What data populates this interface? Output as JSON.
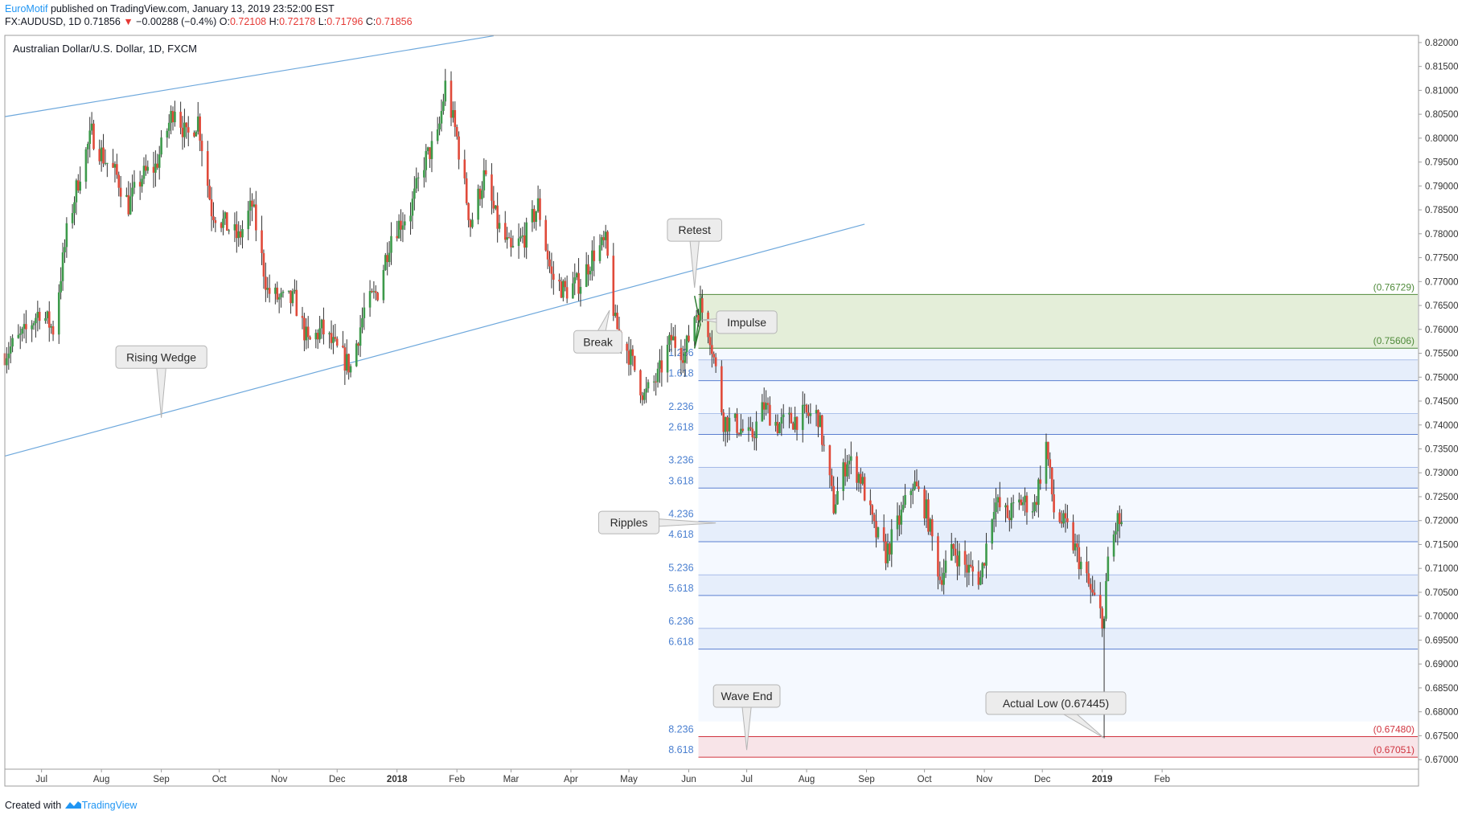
{
  "header": {
    "author": "EuroMotif",
    "published": " published on TradingView.com, January 13, 2019 23:52:00 EST",
    "symbol": "FX:AUDUSD, 1D",
    "last": "0.71856",
    "change_arrow": "▼",
    "change": "−0.00288 (−0.4%)",
    "o_label": "O:",
    "o_value": "0.72108",
    "h_label": "H:",
    "h_value": "0.72178",
    "l_label": "L:",
    "l_value": "0.71796",
    "c_label": "C:",
    "c_value": "0.71856"
  },
  "footer": {
    "created_with": "Created with",
    "brand": "TradingView"
  },
  "chart_data": {
    "type": "candlestick",
    "title": "Australian Dollar/U.S. Dollar, 1D, FXCM",
    "ylim": [
      0.668,
      0.8215
    ],
    "yticks": [
      "0.67000",
      "0.67500",
      "0.68000",
      "0.68500",
      "0.69000",
      "0.69500",
      "0.70000",
      "0.70500",
      "0.71000",
      "0.71500",
      "0.72000",
      "0.72500",
      "0.73000",
      "0.73500",
      "0.74000",
      "0.74500",
      "0.75000",
      "0.75500",
      "0.76000",
      "0.76500",
      "0.77000",
      "0.77500",
      "0.78000",
      "0.78500",
      "0.79000",
      "0.79500",
      "0.80000",
      "0.80500",
      "0.81000",
      "0.81500",
      "0.82000"
    ],
    "xticks": [
      {
        "label": "Jul",
        "date": "2017-07-01",
        "bold": false
      },
      {
        "label": "Aug",
        "date": "2017-08-01",
        "bold": false
      },
      {
        "label": "Sep",
        "date": "2017-09-01",
        "bold": false
      },
      {
        "label": "Oct",
        "date": "2017-10-01",
        "bold": false
      },
      {
        "label": "Nov",
        "date": "2017-11-01",
        "bold": false
      },
      {
        "label": "Dec",
        "date": "2017-12-01",
        "bold": false
      },
      {
        "label": "2018",
        "date": "2018-01-01",
        "bold": true
      },
      {
        "label": "Feb",
        "date": "2018-02-01",
        "bold": false
      },
      {
        "label": "Mar",
        "date": "2018-03-01",
        "bold": false
      },
      {
        "label": "Apr",
        "date": "2018-04-01",
        "bold": false
      },
      {
        "label": "May",
        "date": "2018-05-01",
        "bold": false
      },
      {
        "label": "Jun",
        "date": "2018-06-01",
        "bold": false
      },
      {
        "label": "Jul",
        "date": "2018-07-01",
        "bold": false
      },
      {
        "label": "Aug",
        "date": "2018-08-01",
        "bold": false
      },
      {
        "label": "Sep",
        "date": "2018-09-01",
        "bold": false
      },
      {
        "label": "Oct",
        "date": "2018-10-01",
        "bold": false
      },
      {
        "label": "Nov",
        "date": "2018-11-01",
        "bold": false
      },
      {
        "label": "Dec",
        "date": "2018-12-01",
        "bold": false
      },
      {
        "label": "2019",
        "date": "2019-01-01",
        "bold": true
      },
      {
        "label": "Feb",
        "date": "2019-02-01",
        "bold": false
      }
    ],
    "price_path": [
      [
        "2017-06-12",
        0.755
      ],
      [
        "2017-06-22",
        0.759
      ],
      [
        "2017-06-30",
        0.764
      ],
      [
        "2017-07-07",
        0.76
      ],
      [
        "2017-07-14",
        0.78
      ],
      [
        "2017-07-21",
        0.793
      ],
      [
        "2017-07-27",
        0.801
      ],
      [
        "2017-08-02",
        0.796
      ],
      [
        "2017-08-09",
        0.792
      ],
      [
        "2017-08-15",
        0.786
      ],
      [
        "2017-08-22",
        0.792
      ],
      [
        "2017-08-29",
        0.794
      ],
      [
        "2017-09-08",
        0.807
      ],
      [
        "2017-09-14",
        0.8
      ],
      [
        "2017-09-20",
        0.804
      ],
      [
        "2017-09-27",
        0.785
      ],
      [
        "2017-10-04",
        0.782
      ],
      [
        "2017-10-11",
        0.779
      ],
      [
        "2017-10-18",
        0.786
      ],
      [
        "2017-10-26",
        0.768
      ],
      [
        "2017-11-02",
        0.766
      ],
      [
        "2017-11-09",
        0.766
      ],
      [
        "2017-11-16",
        0.757
      ],
      [
        "2017-11-23",
        0.76
      ],
      [
        "2017-11-30",
        0.756
      ],
      [
        "2017-12-08",
        0.752
      ],
      [
        "2017-12-15",
        0.764
      ],
      [
        "2017-12-22",
        0.768
      ],
      [
        "2017-12-29",
        0.78
      ],
      [
        "2018-01-08",
        0.785
      ],
      [
        "2018-01-15",
        0.795
      ],
      [
        "2018-01-22",
        0.8
      ],
      [
        "2018-01-26",
        0.811
      ],
      [
        "2018-02-01",
        0.8
      ],
      [
        "2018-02-08",
        0.782
      ],
      [
        "2018-02-15",
        0.792
      ],
      [
        "2018-02-22",
        0.782
      ],
      [
        "2018-03-01",
        0.776
      ],
      [
        "2018-03-09",
        0.78
      ],
      [
        "2018-03-15",
        0.786
      ],
      [
        "2018-03-22",
        0.771
      ],
      [
        "2018-03-29",
        0.768
      ],
      [
        "2018-04-06",
        0.77
      ],
      [
        "2018-04-13",
        0.776
      ],
      [
        "2018-04-19",
        0.778
      ],
      [
        "2018-04-24",
        0.761
      ],
      [
        "2018-05-01",
        0.755
      ],
      [
        "2018-05-09",
        0.746
      ],
      [
        "2018-05-16",
        0.75
      ],
      [
        "2018-05-23",
        0.758
      ],
      [
        "2018-05-30",
        0.755
      ],
      [
        "2018-06-04",
        0.763
      ],
      [
        "2018-06-07",
        0.765
      ],
      [
        "2018-06-12",
        0.759
      ],
      [
        "2018-06-19",
        0.741
      ],
      [
        "2018-06-26",
        0.74
      ],
      [
        "2018-07-03",
        0.737
      ],
      [
        "2018-07-10",
        0.744
      ],
      [
        "2018-07-17",
        0.74
      ],
      [
        "2018-07-24",
        0.741
      ],
      [
        "2018-07-31",
        0.742
      ],
      [
        "2018-08-07",
        0.742
      ],
      [
        "2018-08-15",
        0.723
      ],
      [
        "2018-08-22",
        0.733
      ],
      [
        "2018-08-29",
        0.729
      ],
      [
        "2018-09-05",
        0.718
      ],
      [
        "2018-09-11",
        0.713
      ],
      [
        "2018-09-18",
        0.72
      ],
      [
        "2018-09-25",
        0.728
      ],
      [
        "2018-10-02",
        0.722
      ],
      [
        "2018-10-09",
        0.708
      ],
      [
        "2018-10-16",
        0.714
      ],
      [
        "2018-10-23",
        0.71
      ],
      [
        "2018-10-30",
        0.708
      ],
      [
        "2018-11-06",
        0.724
      ],
      [
        "2018-11-13",
        0.721
      ],
      [
        "2018-11-20",
        0.724
      ],
      [
        "2018-11-27",
        0.723
      ],
      [
        "2018-12-03",
        0.736
      ],
      [
        "2018-12-07",
        0.722
      ],
      [
        "2018-12-14",
        0.718
      ],
      [
        "2018-12-20",
        0.712
      ],
      [
        "2018-12-27",
        0.704
      ],
      [
        "2019-01-02",
        0.699
      ],
      [
        "2019-01-04",
        0.712
      ],
      [
        "2019-01-09",
        0.72
      ],
      [
        "2019-01-11",
        0.719
      ]
    ],
    "trendlines": [
      {
        "name": "wedge-upper",
        "x1": "2017-06-12",
        "y1": 0.8045,
        "x2": "2018-02-20",
        "y2": 0.8214
      },
      {
        "name": "wedge-lower",
        "x1": "2017-06-12",
        "y1": 0.7335,
        "x2": "2018-08-31",
        "y2": 0.782
      }
    ],
    "fib_zone": {
      "x_start": "2018-06-06",
      "top": 0.76729,
      "bottom": 0.75606,
      "top_label": "(0.76729)",
      "bottom_label": "(0.75606)"
    },
    "fib_levels": [
      {
        "label": "1.236",
        "price": 0.75356
      },
      {
        "label": "1.618",
        "price": 0.74926
      },
      {
        "label": "2.236",
        "price": 0.74232
      },
      {
        "label": "2.618",
        "price": 0.73803
      },
      {
        "label": "3.236",
        "price": 0.73109
      },
      {
        "label": "3.618",
        "price": 0.7268
      },
      {
        "label": "4.236",
        "price": 0.71986
      },
      {
        "label": "4.618",
        "price": 0.71557
      },
      {
        "label": "5.236",
        "price": 0.70863
      },
      {
        "label": "5.618",
        "price": 0.70434
      },
      {
        "label": "6.236",
        "price": 0.6974
      },
      {
        "label": "6.618",
        "price": 0.69311
      },
      {
        "label": "8.236",
        "price": 0.6748
      },
      {
        "label": "8.618",
        "price": 0.67051
      }
    ],
    "target_zone": {
      "top": 0.6748,
      "bottom": 0.67051,
      "top_label": "(0.67480)",
      "bottom_label": "(0.67051)"
    },
    "actual_low": {
      "date": "2019-01-02",
      "price": 0.67445
    },
    "annotations": [
      {
        "text": "Rising Wedge",
        "date": "2017-09-01",
        "price": 0.7542,
        "tip_date": "2017-09-01",
        "tip_price": 0.7415
      },
      {
        "text": "Retest",
        "date": "2018-06-04",
        "price": 0.7808,
        "tip_date": "2018-06-04",
        "tip_price": 0.7687
      },
      {
        "text": "Impulse",
        "date": "2018-07-01",
        "price": 0.7615,
        "tip_date": "2018-06-08",
        "tip_price": 0.762
      },
      {
        "text": "Break",
        "date": "2018-04-15",
        "price": 0.7574,
        "tip_date": "2018-04-21",
        "tip_price": 0.764
      },
      {
        "text": "Ripples",
        "date": "2018-05-01",
        "price": 0.7196,
        "tip_date": "2018-06-15",
        "tip_price": 0.7195
      },
      {
        "text": "Wave End",
        "date": "2018-07-01",
        "price": 0.6833,
        "tip_date": "2018-07-01",
        "tip_price": 0.672
      },
      {
        "text": "Actual Low (0.67445)",
        "date": "2018-12-08",
        "price": 0.6818,
        "tip_date": "2019-01-02",
        "tip_price": 0.6745
      }
    ]
  }
}
